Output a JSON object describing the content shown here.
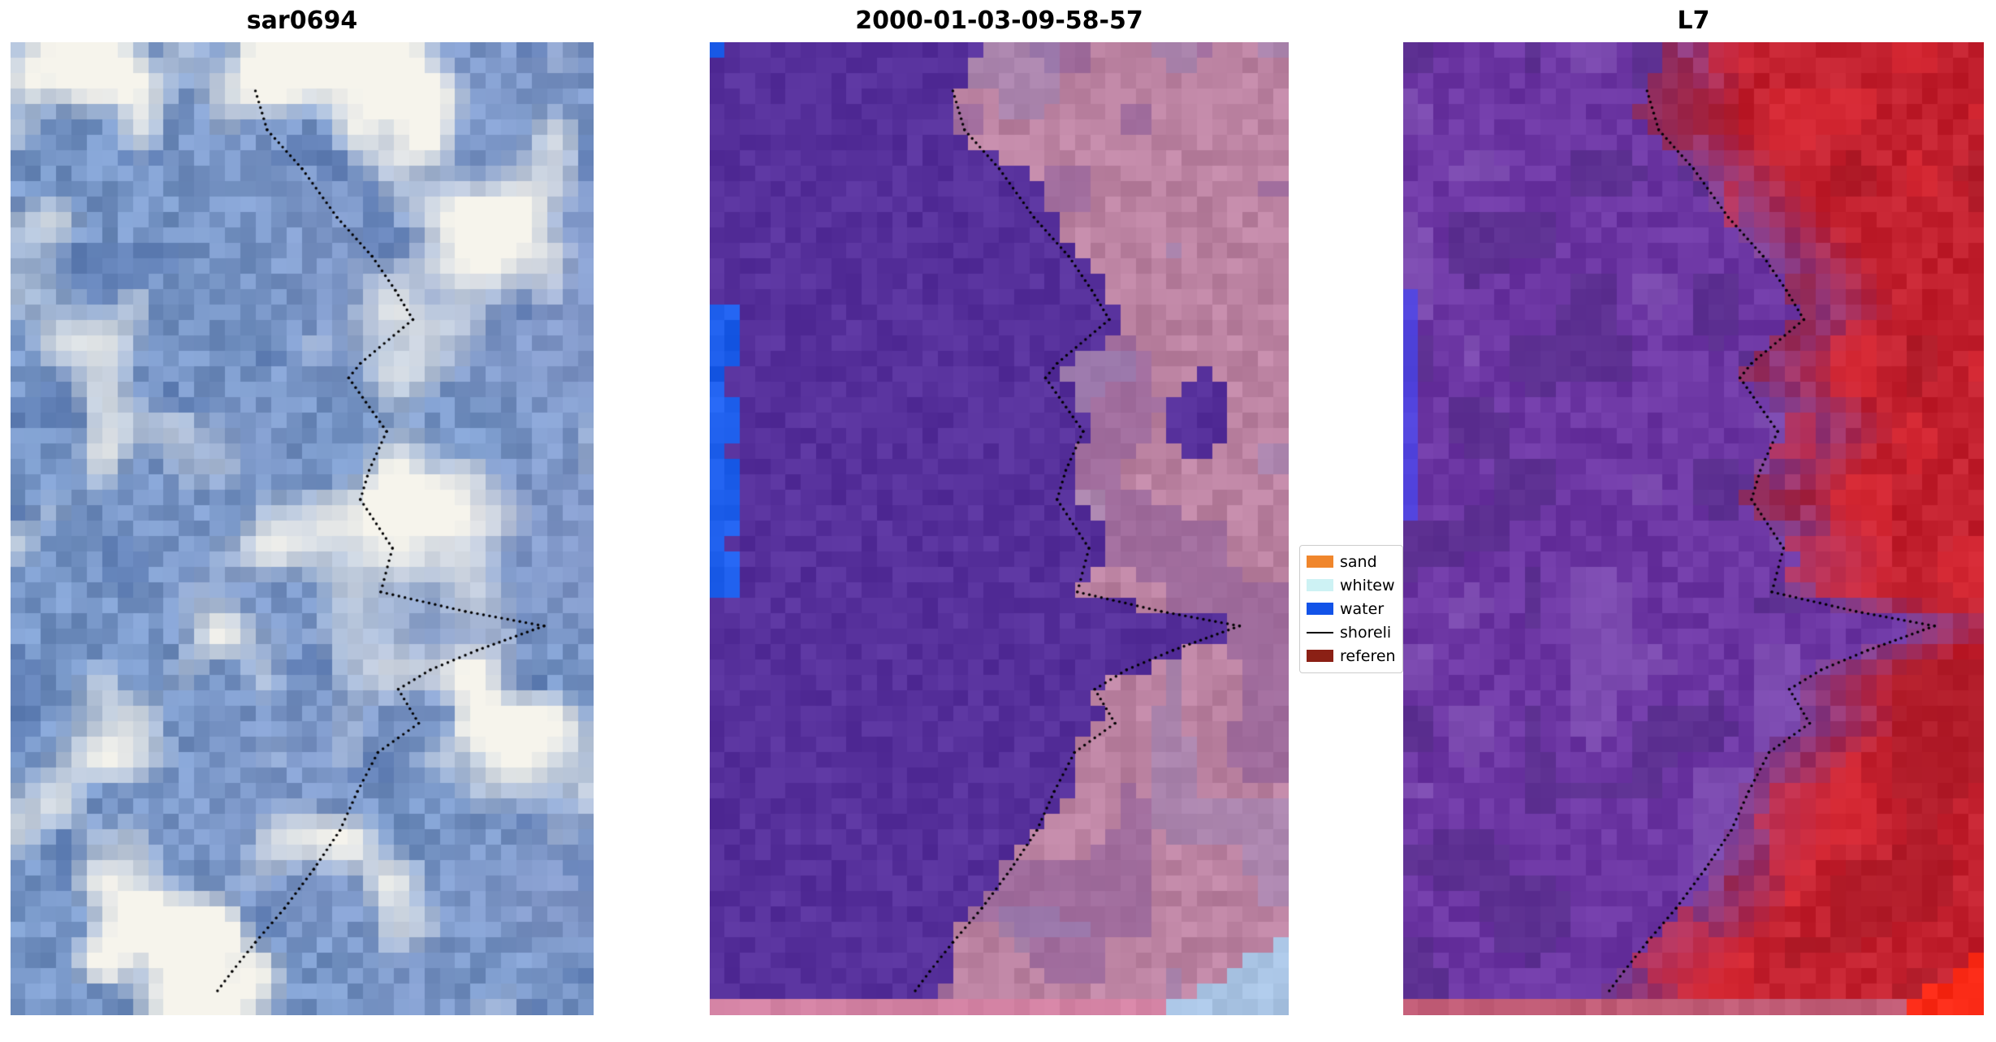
{
  "figure": {
    "background": "#ffffff"
  },
  "panels": [
    {
      "title": "sar0694",
      "palette": {
        "base": "#6f92c3",
        "cloud": "#f6f4ec",
        "lavender": "#a7a6d6",
        "dark": "#4a6aa6",
        "shoreline": "#000000"
      }
    },
    {
      "title": "2000-01-03-09-58-57",
      "palette": {
        "water": "#56309b",
        "land": "#bb82a1",
        "land_purple": "#8a5b99",
        "land_blue": "#9187be",
        "edge_blue": "#1e5fec",
        "corner_blue": "#a9c4e4",
        "bottom_strip": "#d483a4",
        "shoreline": "#000000"
      }
    },
    {
      "title": "L7",
      "palette": {
        "water": "#6c36a3",
        "water_dark": "#502b83",
        "water_light": "#8d60be",
        "land": "#c2202e",
        "land_dark": "#9e1724",
        "land_light": "#e52f38",
        "near_shore": "#7b4099",
        "corner_red": "#fa2a16",
        "bottom_strip": "#c05b75",
        "edge_blue": "#4746ef",
        "shoreline": "#000000"
      }
    }
  ],
  "legend": {
    "items": [
      {
        "label": "sand",
        "type": "patch",
        "color": "#f0862c"
      },
      {
        "label": "whitew",
        "type": "patch",
        "color": "#cdf2f4"
      },
      {
        "label": "water",
        "type": "patch",
        "color": "#1253e8"
      },
      {
        "label": "shoreli",
        "type": "line",
        "color": "#000000"
      },
      {
        "label": "referen",
        "type": "patch",
        "color": "#8b2015"
      }
    ]
  },
  "chart_data": {
    "type": "heatmap",
    "title": "",
    "panel_titles": [
      "sar0694",
      "2000-01-03-09-58-57",
      "L7"
    ],
    "legend_entries": [
      "sand",
      "whitew",
      "water",
      "shoreli",
      "referen"
    ],
    "legend_position": "center-right, between second and third panel",
    "shoreline_style": "black dotted",
    "shoreline": [
      [
        0.42,
        0.05
      ],
      [
        0.44,
        0.09
      ],
      [
        0.5,
        0.13
      ],
      [
        0.56,
        0.18
      ],
      [
        0.62,
        0.22
      ],
      [
        0.66,
        0.255
      ],
      [
        0.69,
        0.285
      ],
      [
        0.6,
        0.33
      ],
      [
        0.58,
        0.345
      ],
      [
        0.645,
        0.4
      ],
      [
        0.615,
        0.44
      ],
      [
        0.6,
        0.47
      ],
      [
        0.655,
        0.52
      ],
      [
        0.635,
        0.565
      ],
      [
        0.78,
        0.585
      ],
      [
        0.915,
        0.6
      ],
      [
        0.8,
        0.625
      ],
      [
        0.72,
        0.645
      ],
      [
        0.665,
        0.665
      ],
      [
        0.7,
        0.7
      ],
      [
        0.63,
        0.73
      ],
      [
        0.595,
        0.77
      ],
      [
        0.565,
        0.81
      ],
      [
        0.52,
        0.85
      ],
      [
        0.47,
        0.89
      ],
      [
        0.42,
        0.925
      ],
      [
        0.38,
        0.955
      ],
      [
        0.355,
        0.975
      ]
    ]
  }
}
